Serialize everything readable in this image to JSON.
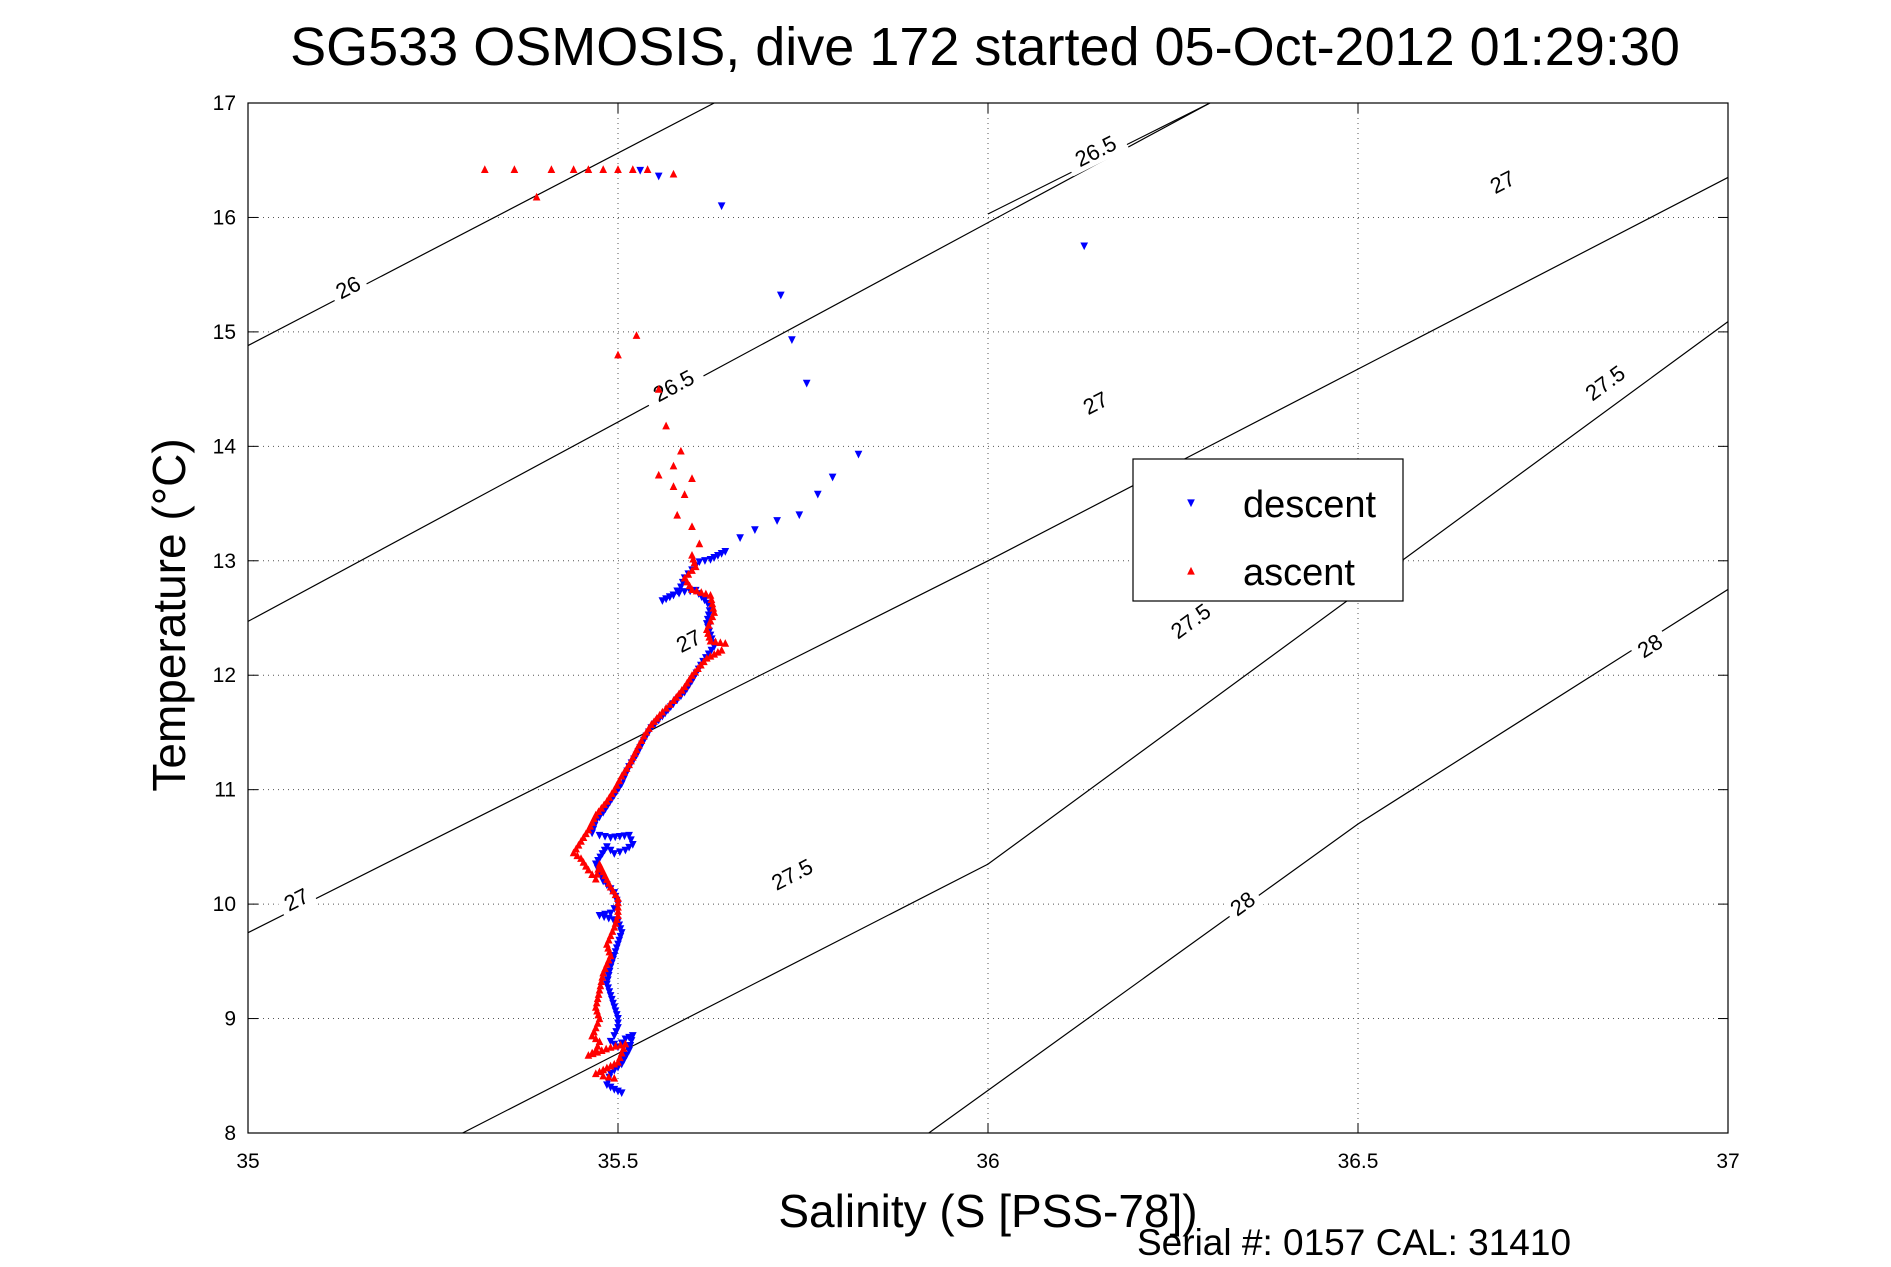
{
  "chart_data": {
    "type": "scatter",
    "title": "SG533 OSMOSIS, dive 172 started 05-Oct-2012 01:29:30",
    "xlabel": "Salinity (S [PSS-78])",
    "ylabel": "Temperature (°C)",
    "xlim": [
      35,
      37
    ],
    "ylim": [
      8,
      17
    ],
    "xticks": [
      "35",
      "35.5",
      "36",
      "36.5",
      "37"
    ],
    "yticks": [
      "8",
      "9",
      "10",
      "11",
      "12",
      "13",
      "14",
      "15",
      "16",
      "17"
    ],
    "grid": true,
    "legend_position": "right-center",
    "footer": "Serial #: 0157  CAL: 31410",
    "contours": [
      {
        "label": "26",
        "points": [
          [
            35.0,
            14.88
          ],
          [
            35.63,
            17.0
          ]
        ],
        "label_at": [
          35.14,
          15.33
        ]
      },
      {
        "label": "26.5",
        "points": [
          [
            35.0,
            12.47
          ],
          [
            36.3,
            17.0
          ]
        ],
        "label_at": [
          35.58,
          14.47
        ]
      },
      {
        "label": "26.5",
        "points": [
          [
            36.0,
            16.03
          ],
          [
            36.3,
            17.0
          ]
        ],
        "label_at": [
          36.15,
          16.52
        ]
      },
      {
        "label": "27",
        "points": [
          [
            35.0,
            9.75
          ],
          [
            36.0,
            13.0
          ],
          [
            37.0,
            16.35
          ]
        ],
        "label_at": [
          35.07,
          9.98
        ]
      },
      {
        "label": "27",
        "points": [
          [
            35.0,
            9.75
          ],
          [
            36.0,
            13.0
          ],
          [
            37.0,
            16.35
          ]
        ],
        "label_at": [
          35.6,
          12.24
        ]
      },
      {
        "label": "27",
        "points": [
          [
            35.0,
            9.75
          ],
          [
            36.0,
            13.0
          ],
          [
            37.0,
            16.35
          ]
        ],
        "label_at": [
          36.15,
          14.32
        ]
      },
      {
        "label": "27",
        "points": [
          [
            35.0,
            9.75
          ],
          [
            36.0,
            13.0
          ],
          [
            37.0,
            16.35
          ]
        ],
        "label_at": [
          36.7,
          16.25
        ]
      },
      {
        "label": "27.5",
        "points": [
          [
            35.29,
            8.0
          ],
          [
            36.0,
            10.35
          ],
          [
            37.0,
            15.09
          ]
        ],
        "label_at": [
          35.74,
          10.2
        ]
      },
      {
        "label": "27.5",
        "points": [
          [
            35.29,
            8.0
          ],
          [
            36.0,
            10.35
          ],
          [
            37.0,
            15.09
          ]
        ],
        "label_at": [
          36.28,
          12.42
        ]
      },
      {
        "label": "27.5",
        "points": [
          [
            35.29,
            8.0
          ],
          [
            36.0,
            10.35
          ],
          [
            37.0,
            15.09
          ]
        ],
        "label_at": [
          36.84,
          14.5
        ]
      },
      {
        "label": "28",
        "points": [
          [
            35.92,
            8.0
          ],
          [
            36.5,
            10.7
          ],
          [
            37.0,
            12.75
          ]
        ],
        "label_at": [
          36.35,
          9.95
        ]
      },
      {
        "label": "28",
        "points": [
          [
            35.92,
            8.0
          ],
          [
            36.5,
            10.7
          ],
          [
            37.0,
            12.75
          ]
        ],
        "label_at": [
          36.9,
          12.2
        ]
      }
    ],
    "series": [
      {
        "name": "descent",
        "color": "#0000ff",
        "marker": "triangle-down",
        "points": [
          [
            35.53,
            16.41
          ],
          [
            35.555,
            16.36
          ],
          [
            35.64,
            16.1
          ],
          [
            36.13,
            15.75
          ],
          [
            35.72,
            15.32
          ],
          [
            35.735,
            14.93
          ],
          [
            35.755,
            14.55
          ],
          [
            35.825,
            13.93
          ],
          [
            35.79,
            13.73
          ],
          [
            35.77,
            13.58
          ],
          [
            35.745,
            13.4
          ],
          [
            35.715,
            13.35
          ],
          [
            35.685,
            13.27
          ],
          [
            35.665,
            13.2
          ],
          [
            35.645,
            13.08
          ],
          [
            35.625,
            13.01
          ],
          [
            35.61,
            12.99
          ],
          [
            35.6,
            12.92
          ],
          [
            35.59,
            12.85
          ],
          [
            35.585,
            12.77
          ],
          [
            35.575,
            12.7
          ],
          [
            35.56,
            12.65
          ],
          [
            35.575,
            12.7
          ],
          [
            35.59,
            12.73
          ],
          [
            35.605,
            12.74
          ],
          [
            35.625,
            12.6
          ],
          [
            35.62,
            12.45
          ],
          [
            35.625,
            12.35
          ],
          [
            35.63,
            12.25
          ],
          [
            35.615,
            12.12
          ],
          [
            35.6,
            11.95
          ],
          [
            35.59,
            11.85
          ],
          [
            35.575,
            11.75
          ],
          [
            35.56,
            11.64
          ],
          [
            35.545,
            11.54
          ],
          [
            35.535,
            11.43
          ],
          [
            35.525,
            11.3
          ],
          [
            35.515,
            11.2
          ],
          [
            35.505,
            11.05
          ],
          [
            35.495,
            10.95
          ],
          [
            35.48,
            10.8
          ],
          [
            35.47,
            10.72
          ],
          [
            35.465,
            10.62
          ],
          [
            35.475,
            10.6
          ],
          [
            35.49,
            10.58
          ],
          [
            35.515,
            10.6
          ],
          [
            35.52,
            10.52
          ],
          [
            35.51,
            10.47
          ],
          [
            35.495,
            10.44
          ],
          [
            35.485,
            10.5
          ],
          [
            35.47,
            10.35
          ],
          [
            35.48,
            10.2
          ],
          [
            35.495,
            10.1
          ],
          [
            35.5,
            10.0
          ],
          [
            35.49,
            9.92
          ],
          [
            35.475,
            9.9
          ],
          [
            35.5,
            9.85
          ],
          [
            35.505,
            9.75
          ],
          [
            35.5,
            9.65
          ],
          [
            35.495,
            9.55
          ],
          [
            35.49,
            9.45
          ],
          [
            35.485,
            9.3
          ],
          [
            35.49,
            9.2
          ],
          [
            35.495,
            9.1
          ],
          [
            35.5,
            9.0
          ],
          [
            35.5,
            8.92
          ],
          [
            35.495,
            8.85
          ],
          [
            35.49,
            8.8
          ],
          [
            35.5,
            8.75
          ],
          [
            35.51,
            8.82
          ],
          [
            35.52,
            8.85
          ],
          [
            35.515,
            8.72
          ],
          [
            35.505,
            8.6
          ],
          [
            35.49,
            8.52
          ],
          [
            35.485,
            8.42
          ],
          [
            35.495,
            8.38
          ],
          [
            35.505,
            8.35
          ]
        ]
      },
      {
        "name": "ascent",
        "color": "#ff0000",
        "marker": "triangle-up",
        "points": [
          [
            35.32,
            16.42
          ],
          [
            35.36,
            16.42
          ],
          [
            35.39,
            16.18
          ],
          [
            35.41,
            16.42
          ],
          [
            35.44,
            16.42
          ],
          [
            35.46,
            16.42
          ],
          [
            35.48,
            16.42
          ],
          [
            35.5,
            16.42
          ],
          [
            35.52,
            16.42
          ],
          [
            35.54,
            16.42
          ],
          [
            35.575,
            16.38
          ],
          [
            35.525,
            14.97
          ],
          [
            35.5,
            14.8
          ],
          [
            35.555,
            14.5
          ],
          [
            35.565,
            14.18
          ],
          [
            35.585,
            13.96
          ],
          [
            35.575,
            13.83
          ],
          [
            35.555,
            13.75
          ],
          [
            35.575,
            13.65
          ],
          [
            35.6,
            13.72
          ],
          [
            35.59,
            13.58
          ],
          [
            35.58,
            13.4
          ],
          [
            35.6,
            13.3
          ],
          [
            35.61,
            13.15
          ],
          [
            35.6,
            13.05
          ],
          [
            35.605,
            12.95
          ],
          [
            35.59,
            12.85
          ],
          [
            35.6,
            12.75
          ],
          [
            35.625,
            12.7
          ],
          [
            35.63,
            12.55
          ],
          [
            35.62,
            12.4
          ],
          [
            35.625,
            12.3
          ],
          [
            35.645,
            12.28
          ],
          [
            35.64,
            12.22
          ],
          [
            35.62,
            12.15
          ],
          [
            35.6,
            12.0
          ],
          [
            35.59,
            11.9
          ],
          [
            35.575,
            11.78
          ],
          [
            35.56,
            11.68
          ],
          [
            35.545,
            11.57
          ],
          [
            35.535,
            11.47
          ],
          [
            35.525,
            11.35
          ],
          [
            35.515,
            11.22
          ],
          [
            35.505,
            11.12
          ],
          [
            35.495,
            11.0
          ],
          [
            35.485,
            10.9
          ],
          [
            35.47,
            10.78
          ],
          [
            35.46,
            10.65
          ],
          [
            35.45,
            10.55
          ],
          [
            35.44,
            10.45
          ],
          [
            35.45,
            10.4
          ],
          [
            35.46,
            10.3
          ],
          [
            35.47,
            10.22
          ],
          [
            35.475,
            10.35
          ],
          [
            35.49,
            10.15
          ],
          [
            35.5,
            10.05
          ],
          [
            35.5,
            9.9
          ],
          [
            35.495,
            9.8
          ],
          [
            35.485,
            9.65
          ],
          [
            35.49,
            9.55
          ],
          [
            35.48,
            9.4
          ],
          [
            35.475,
            9.25
          ],
          [
            35.47,
            9.1
          ],
          [
            35.475,
            9.0
          ],
          [
            35.47,
            8.92
          ],
          [
            35.465,
            8.85
          ],
          [
            35.475,
            8.8
          ],
          [
            35.47,
            8.72
          ],
          [
            35.46,
            8.68
          ],
          [
            35.49,
            8.75
          ],
          [
            35.51,
            8.78
          ],
          [
            35.5,
            8.62
          ],
          [
            35.47,
            8.52
          ],
          [
            35.48,
            8.5
          ],
          [
            35.495,
            8.48
          ]
        ]
      }
    ]
  }
}
